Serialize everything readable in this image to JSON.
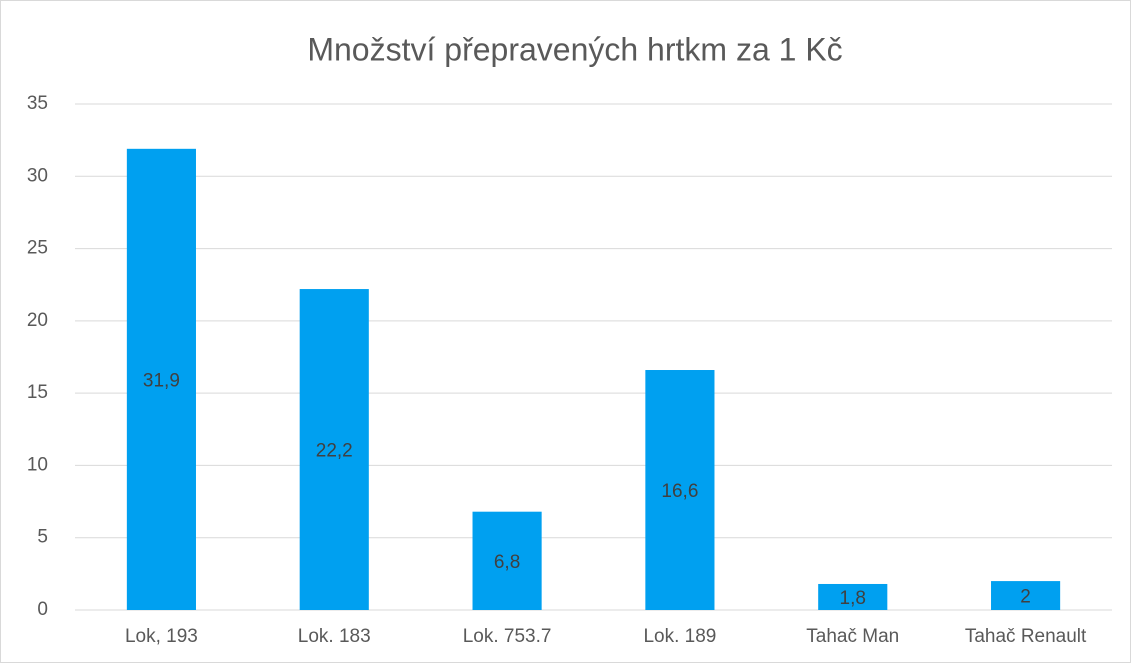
{
  "chart_data": {
    "type": "bar",
    "title": "Množství přepravených hrtkm za 1 Kč",
    "categories": [
      "Lok, 193",
      "Lok. 183",
      "Lok. 753.7",
      "Lok. 189",
      "Tahač Man",
      "Tahač Renault"
    ],
    "values": [
      31.9,
      22.2,
      6.8,
      16.6,
      1.8,
      2
    ],
    "value_labels": [
      "31,9",
      "22,2",
      "6,8",
      "16,6",
      "1,8",
      "2"
    ],
    "color": "#00a0f0",
    "ylim": [
      0,
      35
    ],
    "yticks": [
      0,
      5,
      10,
      15,
      20,
      25,
      30,
      35
    ],
    "grid": true
  }
}
